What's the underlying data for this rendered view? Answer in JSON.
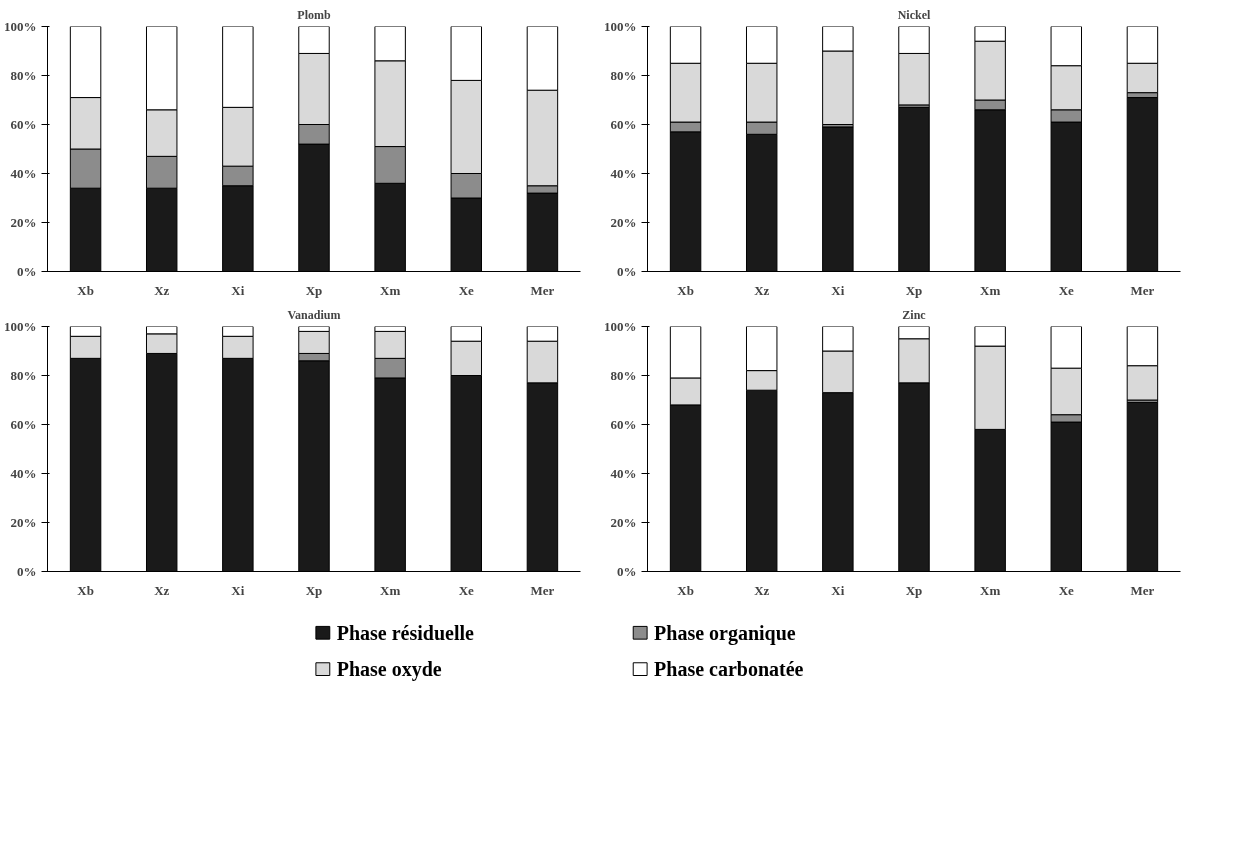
{
  "chart_data": [
    {
      "type": "bar",
      "title": "Plomb",
      "stacked": true,
      "categories": [
        "Xb",
        "Xz",
        "Xi",
        "Xp",
        "Xm",
        "Xe",
        "Mer"
      ],
      "ylim": [
        0,
        100
      ],
      "yticks": [
        {
          "value": 0,
          "label": "0%"
        },
        {
          "value": 20,
          "label": "20%"
        },
        {
          "value": 40,
          "label": "40%"
        },
        {
          "value": 60,
          "label": "60%"
        },
        {
          "value": 80,
          "label": "80%"
        },
        {
          "value": 100,
          "label": "100%"
        }
      ],
      "grid": false,
      "series": [
        {
          "color": "#1a1a1a",
          "values": [
            34,
            34,
            35,
            52,
            36,
            30,
            32
          ]
        },
        {
          "color": "#8c8c8c",
          "values": [
            16,
            13,
            8,
            8,
            15,
            10,
            3
          ]
        },
        {
          "color": "#d9d9d9",
          "values": [
            21,
            19,
            24,
            29,
            35,
            38,
            39
          ]
        },
        {
          "color": "#ffffff",
          "values": [
            29,
            34,
            33,
            11,
            14,
            22,
            26
          ]
        }
      ]
    },
    {
      "type": "bar",
      "title": "Nickel",
      "stacked": true,
      "categories": [
        "Xb",
        "Xz",
        "Xi",
        "Xp",
        "Xm",
        "Xe",
        "Mer"
      ],
      "ylim": [
        0,
        100
      ],
      "yticks": [
        {
          "value": 0,
          "label": "0%"
        },
        {
          "value": 20,
          "label": "20%"
        },
        {
          "value": 40,
          "label": "40%"
        },
        {
          "value": 60,
          "label": "60%"
        },
        {
          "value": 80,
          "label": "80%"
        },
        {
          "value": 100,
          "label": "100%"
        }
      ],
      "grid": false,
      "series": [
        {
          "color": "#1a1a1a",
          "values": [
            57,
            56,
            59,
            67,
            66,
            61,
            71
          ]
        },
        {
          "color": "#8c8c8c",
          "values": [
            4,
            5,
            1,
            1,
            4,
            5,
            2
          ]
        },
        {
          "color": "#d9d9d9",
          "values": [
            24,
            24,
            30,
            21,
            24,
            18,
            12
          ]
        },
        {
          "color": "#ffffff",
          "values": [
            15,
            15,
            10,
            11,
            6,
            16,
            15
          ]
        }
      ]
    },
    {
      "type": "bar",
      "title": "Vanadium",
      "stacked": true,
      "categories": [
        "Xb",
        "Xz",
        "Xi",
        "Xp",
        "Xm",
        "Xe",
        "Mer"
      ],
      "ylim": [
        0,
        100
      ],
      "yticks": [
        {
          "value": 0,
          "label": "0%"
        },
        {
          "value": 20,
          "label": "20%"
        },
        {
          "value": 40,
          "label": "40%"
        },
        {
          "value": 60,
          "label": "60%"
        },
        {
          "value": 80,
          "label": "80%"
        },
        {
          "value": 100,
          "label": "100%"
        }
      ],
      "grid": false,
      "series": [
        {
          "color": "#1a1a1a",
          "values": [
            87,
            89,
            87,
            86,
            79,
            80,
            77
          ]
        },
        {
          "color": "#8c8c8c",
          "values": [
            0,
            0,
            0,
            3,
            8,
            0,
            0
          ]
        },
        {
          "color": "#d9d9d9",
          "values": [
            9,
            8,
            9,
            9,
            11,
            14,
            17
          ]
        },
        {
          "color": "#ffffff",
          "values": [
            4,
            3,
            4,
            2,
            2,
            6,
            6
          ]
        }
      ]
    },
    {
      "type": "bar",
      "title": "Zinc",
      "stacked": true,
      "legend": "bottom",
      "categories": [
        "Xb",
        "Xz",
        "Xi",
        "Xp",
        "Xm",
        "Xe",
        "Mer"
      ],
      "ylim": [
        0,
        100
      ],
      "yticks": [
        {
          "value": 0,
          "label": "0%"
        },
        {
          "value": 20,
          "label": "20%"
        },
        {
          "value": 40,
          "label": "40%"
        },
        {
          "value": 60,
          "label": "60%"
        },
        {
          "value": 80,
          "label": "80%"
        },
        {
          "value": 100,
          "label": "100%"
        }
      ],
      "grid": false,
      "series": [
        {
          "name": "Phase résiduelle",
          "color": "#1a1a1a",
          "values": [
            68,
            74,
            73,
            77,
            58,
            61,
            69
          ]
        },
        {
          "name": "Phase organique",
          "color": "#8c8c8c",
          "values": [
            0,
            0,
            0,
            0,
            0,
            3,
            1
          ]
        },
        {
          "name": "Phase oxyde",
          "color": "#d9d9d9",
          "values": [
            11,
            8,
            17,
            18,
            34,
            19,
            14
          ]
        },
        {
          "name": "Phase carbonatée",
          "color": "#ffffff",
          "values": [
            21,
            18,
            10,
            5,
            8,
            17,
            16
          ]
        }
      ]
    }
  ]
}
